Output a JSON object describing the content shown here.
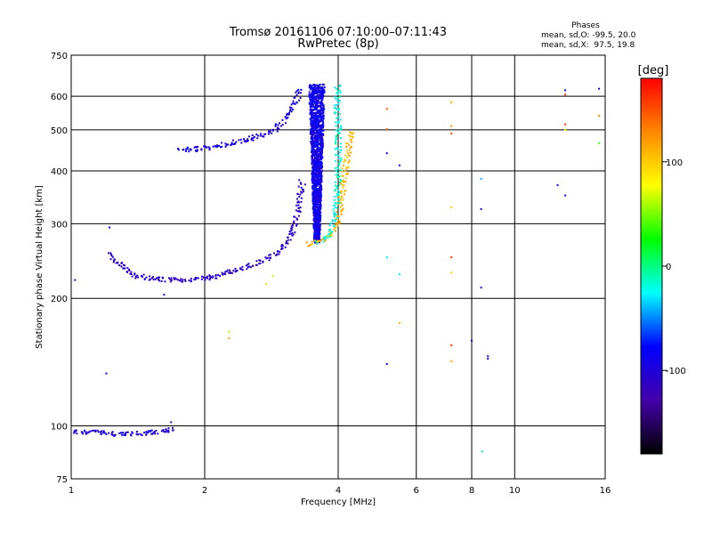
{
  "title": "Tromsø 20161106 07:10:00–07:11:43",
  "subtitle": "RwPretec (8p)",
  "stats": {
    "heading": "Phases",
    "o_line": "mean, sd,O: -99.5, 20.0",
    "x_line": "mean, sd,X:  97.5, 19.8"
  },
  "chart_data": {
    "type": "scatter",
    "xlabel": "Frequency [MHz]",
    "ylabel": "Stationary phase Virtual Height [km]",
    "xscale": "log",
    "yscale": "log",
    "xlim": [
      1,
      16
    ],
    "ylim": [
      75,
      750
    ],
    "xticks": [
      1,
      2,
      4,
      6,
      8,
      10,
      16
    ],
    "xtick_labels": [
      "1",
      "2",
      "4",
      "6",
      "8",
      "10",
      "16"
    ],
    "yticks": [
      75,
      100,
      200,
      300,
      400,
      500,
      600,
      750
    ],
    "ytick_labels": [
      "75",
      "100",
      "200",
      "300",
      "400",
      "500",
      "600",
      "750"
    ],
    "grid": true,
    "colorbar": {
      "label": "[deg]",
      "range": [
        -180,
        180
      ],
      "ticks": [
        100,
        0,
        -100
      ],
      "tick_labels": [
        "100",
        "0",
        "-100"
      ],
      "colors": [
        "#000000",
        "#4400aa",
        "#0000ff",
        "#00ffff",
        "#00ff00",
        "#ffff00",
        "#ff8800",
        "#ff0000"
      ]
    },
    "traces": [
      {
        "kind": "curve",
        "phase": -100,
        "points": [
          [
            1.0,
            97
          ],
          [
            1.15,
            96.5
          ],
          [
            1.3,
            95.5
          ],
          [
            1.45,
            96
          ],
          [
            1.6,
            97
          ],
          [
            1.72,
            98
          ]
        ]
      },
      {
        "kind": "curve",
        "phase": -108,
        "points": [
          [
            1.22,
            255
          ],
          [
            1.3,
            238
          ],
          [
            1.4,
            226
          ],
          [
            1.55,
            222
          ],
          [
            1.8,
            221
          ],
          [
            2.0,
            223
          ],
          [
            2.2,
            228
          ],
          [
            2.5,
            237
          ],
          [
            2.8,
            250
          ],
          [
            3.0,
            262
          ],
          [
            3.15,
            285
          ],
          [
            3.25,
            320
          ],
          [
            3.32,
            380
          ]
        ]
      },
      {
        "kind": "curve",
        "phase": -95,
        "points": [
          [
            1.75,
            448
          ],
          [
            1.9,
            450
          ],
          [
            2.1,
            456
          ],
          [
            2.35,
            468
          ],
          [
            2.6,
            480
          ],
          [
            2.85,
            495
          ],
          [
            3.0,
            520
          ],
          [
            3.2,
            580
          ],
          [
            3.3,
            630
          ]
        ]
      },
      {
        "kind": "band",
        "phase": -90,
        "x": [
          3.45,
          3.75
        ],
        "y": [
          270,
          640
        ]
      },
      {
        "kind": "curve",
        "phase": 110,
        "points": [
          [
            3.4,
            268
          ],
          [
            3.6,
            272
          ],
          [
            3.8,
            278
          ],
          [
            3.95,
            292
          ],
          [
            4.05,
            330
          ],
          [
            4.12,
            380
          ],
          [
            4.2,
            440
          ],
          [
            4.28,
            500
          ]
        ]
      },
      {
        "kind": "curve",
        "phase": -20,
        "points": [
          [
            3.6,
            270
          ],
          [
            3.8,
            280
          ],
          [
            3.95,
            310
          ],
          [
            4.0,
            380
          ],
          [
            4.0,
            450
          ],
          [
            4.0,
            520
          ],
          [
            3.98,
            590
          ],
          [
            4.0,
            640
          ]
        ]
      }
    ],
    "sparse_points": [
      {
        "x": 1.02,
        "y": 221,
        "phase": -100
      },
      {
        "x": 1.2,
        "y": 133,
        "phase": -100
      },
      {
        "x": 1.22,
        "y": 294,
        "phase": -100
      },
      {
        "x": 1.62,
        "y": 204,
        "phase": -110
      },
      {
        "x": 1.68,
        "y": 102,
        "phase": -110
      },
      {
        "x": 2.27,
        "y": 167,
        "phase": 60
      },
      {
        "x": 2.27,
        "y": 161,
        "phase": 120
      },
      {
        "x": 2.75,
        "y": 216,
        "phase": 100
      },
      {
        "x": 2.85,
        "y": 226,
        "phase": 60
      },
      {
        "x": 5.15,
        "y": 560,
        "phase": 150
      },
      {
        "x": 5.15,
        "y": 502,
        "phase": 140
      },
      {
        "x": 5.15,
        "y": 440,
        "phase": -90
      },
      {
        "x": 5.15,
        "y": 250,
        "phase": -30
      },
      {
        "x": 5.15,
        "y": 140,
        "phase": -90
      },
      {
        "x": 5.5,
        "y": 412,
        "phase": -90
      },
      {
        "x": 5.5,
        "y": 228,
        "phase": -30
      },
      {
        "x": 5.5,
        "y": 175,
        "phase": 110
      },
      {
        "x": 7.2,
        "y": 580,
        "phase": 110
      },
      {
        "x": 7.2,
        "y": 510,
        "phase": 120
      },
      {
        "x": 7.2,
        "y": 490,
        "phase": 150
      },
      {
        "x": 7.2,
        "y": 328,
        "phase": 100
      },
      {
        "x": 7.2,
        "y": 250,
        "phase": 160
      },
      {
        "x": 7.2,
        "y": 230,
        "phase": 100
      },
      {
        "x": 7.2,
        "y": 155,
        "phase": 160
      },
      {
        "x": 7.2,
        "y": 142,
        "phase": 110
      },
      {
        "x": 8.0,
        "y": 159,
        "phase": -100
      },
      {
        "x": 8.4,
        "y": 383,
        "phase": -40
      },
      {
        "x": 8.4,
        "y": 325,
        "phase": -100
      },
      {
        "x": 8.4,
        "y": 212,
        "phase": -110
      },
      {
        "x": 8.45,
        "y": 87,
        "phase": -10
      },
      {
        "x": 8.7,
        "y": 146,
        "phase": -100
      },
      {
        "x": 8.7,
        "y": 144,
        "phase": -110
      },
      {
        "x": 12.5,
        "y": 370,
        "phase": -100
      },
      {
        "x": 13.0,
        "y": 620,
        "phase": -100
      },
      {
        "x": 13.0,
        "y": 605,
        "phase": 160
      },
      {
        "x": 13.0,
        "y": 515,
        "phase": 160
      },
      {
        "x": 13.0,
        "y": 500,
        "phase": 80
      },
      {
        "x": 13.0,
        "y": 350,
        "phase": -100
      },
      {
        "x": 15.5,
        "y": 625,
        "phase": -100
      },
      {
        "x": 15.5,
        "y": 540,
        "phase": 130
      },
      {
        "x": 15.5,
        "y": 465,
        "phase": 40
      }
    ]
  }
}
